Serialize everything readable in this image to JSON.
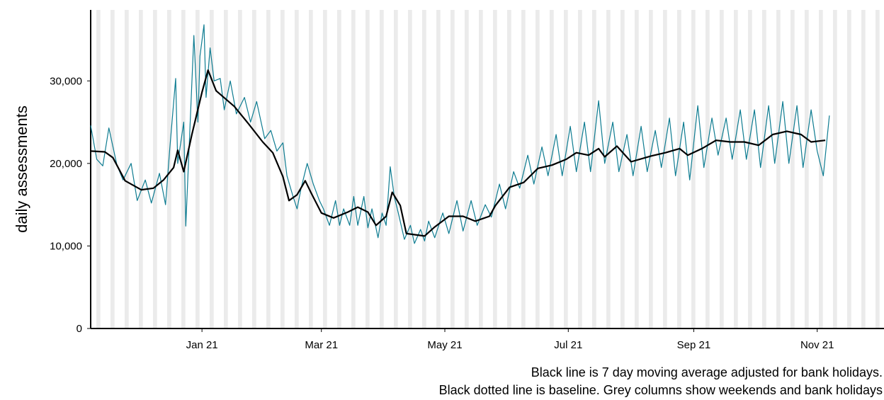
{
  "chart_data": {
    "type": "line",
    "y_label": "daily assessments",
    "notes": [
      "Black line is 7 day moving average adjusted for bank holidays.",
      "Black dotted line is baseline. Grey columns show weekends and bank holidays"
    ],
    "xlim": [
      -55,
      337
    ],
    "xticks": [
      {
        "value": 0,
        "label": "Jan 21"
      },
      {
        "value": 59,
        "label": "Mar 21"
      },
      {
        "value": 120,
        "label": "May 21"
      },
      {
        "value": 181,
        "label": "Jul 21"
      },
      {
        "value": 243,
        "label": "Sep 21"
      },
      {
        "value": 304,
        "label": "Nov 21"
      }
    ],
    "ylim": [
      0,
      38600
    ],
    "yticks": [
      0,
      {
        "value": 10000,
        "label": "10,000"
      },
      {
        "value": 20000,
        "label": "20,000"
      },
      {
        "value": 30000,
        "label": "30,000"
      }
    ],
    "series": [
      {
        "color": "#0e7c91",
        "width": 1.2,
        "x": [
          -55,
          -52,
          -49,
          -46,
          -42,
          -39,
          -35,
          -32,
          -28,
          -25,
          -21,
          -18,
          -16,
          -13,
          -12,
          -9,
          -8,
          -4,
          -2,
          -1,
          1,
          2,
          4,
          6,
          9,
          11,
          14,
          17,
          21,
          24,
          27,
          31,
          34,
          37,
          40,
          42,
          45,
          47,
          49,
          52,
          55,
          58,
          60,
          63,
          66,
          68,
          70,
          73,
          75,
          77,
          80,
          82,
          84,
          87,
          89,
          91,
          93,
          95,
          97,
          100,
          103,
          105,
          108,
          110,
          112,
          115,
          119,
          122,
          126,
          129,
          133,
          136,
          140,
          143,
          147,
          150,
          154,
          157,
          161,
          164,
          168,
          171,
          175,
          178,
          182,
          185,
          189,
          192,
          196,
          199,
          203,
          206,
          210,
          213,
          217,
          220,
          224,
          227,
          231,
          234,
          238,
          241,
          245,
          248,
          252,
          255,
          259,
          262,
          266,
          269,
          273,
          276,
          280,
          283,
          287,
          290,
          294,
          297,
          301,
          304,
          307,
          310
        ],
        "values": [
          24600,
          20500,
          19700,
          24300,
          19800,
          18000,
          20000,
          15500,
          18000,
          15200,
          18800,
          15000,
          21500,
          30300,
          20000,
          25000,
          12400,
          35500,
          25000,
          33000,
          36800,
          28000,
          34000,
          30000,
          30300,
          26500,
          30000,
          26000,
          28000,
          25000,
          27500,
          23000,
          24000,
          21500,
          22500,
          18500,
          16000,
          14500,
          17000,
          20000,
          17500,
          15500,
          14500,
          12500,
          15500,
          12500,
          14500,
          12500,
          16000,
          12500,
          16000,
          12200,
          14500,
          11000,
          14000,
          12500,
          19600,
          16000,
          14000,
          10800,
          12500,
          10300,
          12000,
          10600,
          13000,
          11000,
          14000,
          11500,
          15500,
          11800,
          15500,
          12500,
          15000,
          13500,
          17500,
          14500,
          19000,
          17000,
          21000,
          17500,
          22000,
          18500,
          23500,
          18500,
          24500,
          19000,
          25000,
          19000,
          27600,
          20000,
          25000,
          19000,
          23500,
          18500,
          24500,
          19000,
          24000,
          19500,
          25500,
          18500,
          25000,
          18000,
          27000,
          19500,
          25500,
          21000,
          25500,
          20500,
          26500,
          20500,
          26500,
          19500,
          27000,
          20000,
          27500,
          20000,
          27000,
          19500,
          26500,
          21500,
          18500,
          25800
        ]
      },
      {
        "color": "#000000",
        "width": 2.2,
        "x": [
          -55,
          -48,
          -44,
          -38,
          -30,
          -24,
          -19,
          -14,
          -12,
          -9,
          -5,
          0,
          3,
          7,
          16,
          23,
          30,
          35,
          40,
          43,
          47,
          51,
          54,
          59,
          65,
          72,
          77,
          82,
          86,
          91,
          94,
          98,
          101,
          110,
          115,
          122,
          129,
          135,
          142,
          145,
          152,
          159,
          166,
          173,
          180,
          185,
          191,
          196,
          199,
          205,
          212,
          222,
          229,
          236,
          240,
          247,
          254,
          261,
          268,
          275,
          282,
          289,
          296,
          301,
          308
        ],
        "values": [
          21500,
          21400,
          20700,
          17900,
          16800,
          17000,
          18000,
          19500,
          21600,
          19000,
          23500,
          28600,
          31300,
          28800,
          26900,
          24800,
          22600,
          21300,
          18400,
          15500,
          16200,
          17900,
          16400,
          14000,
          13400,
          14100,
          14700,
          14100,
          12500,
          13600,
          16500,
          14900,
          11500,
          11200,
          12300,
          13600,
          13600,
          13000,
          13600,
          14900,
          17100,
          17700,
          19400,
          19800,
          20500,
          21300,
          21000,
          21800,
          20800,
          22100,
          20200,
          20900,
          21300,
          21800,
          21000,
          21800,
          22800,
          22600,
          22600,
          22200,
          23500,
          23900,
          23500,
          22600,
          22800
        ]
      }
    ]
  }
}
